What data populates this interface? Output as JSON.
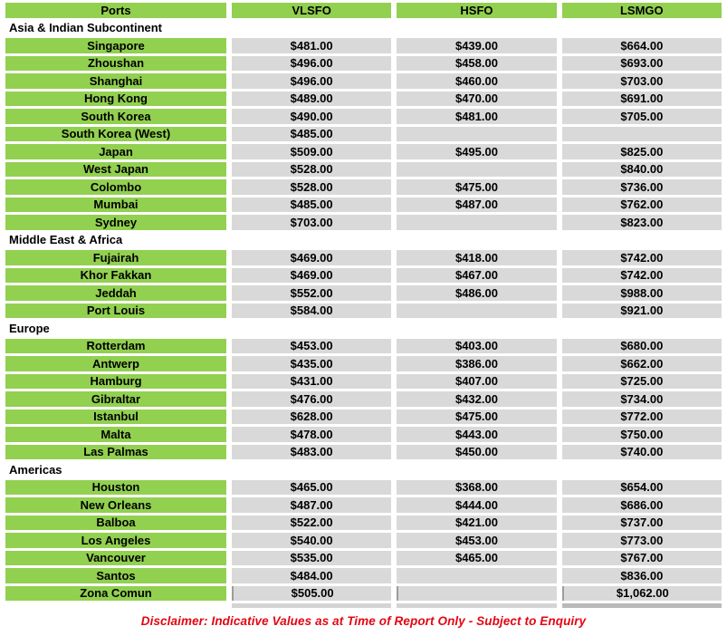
{
  "table": {
    "columns": [
      "Ports",
      "VLSFO",
      "HSFO",
      "LSMGO"
    ],
    "sections": [
      {
        "region": "Asia & Indian Subcontinent",
        "rows": [
          {
            "port": "Singapore",
            "vlsfo": "$481.00",
            "hsfo": "$439.00",
            "lsmgo": "$664.00"
          },
          {
            "port": "Zhoushan",
            "vlsfo": "$496.00",
            "hsfo": "$458.00",
            "lsmgo": "$693.00"
          },
          {
            "port": "Shanghai",
            "vlsfo": "$496.00",
            "hsfo": "$460.00",
            "lsmgo": "$703.00"
          },
          {
            "port": "Hong Kong",
            "vlsfo": "$489.00",
            "hsfo": "$470.00",
            "lsmgo": "$691.00"
          },
          {
            "port": "South Korea",
            "vlsfo": "$490.00",
            "hsfo": "$481.00",
            "lsmgo": "$705.00"
          },
          {
            "port": "South Korea (West)",
            "vlsfo": "$485.00",
            "hsfo": "",
            "lsmgo": ""
          },
          {
            "port": "Japan",
            "vlsfo": "$509.00",
            "hsfo": "$495.00",
            "lsmgo": "$825.00"
          },
          {
            "port": "West Japan",
            "vlsfo": "$528.00",
            "hsfo": "",
            "lsmgo": "$840.00"
          },
          {
            "port": "Colombo",
            "vlsfo": "$528.00",
            "hsfo": "$475.00",
            "lsmgo": "$736.00"
          },
          {
            "port": "Mumbai",
            "vlsfo": "$485.00",
            "hsfo": "$487.00",
            "lsmgo": "$762.00"
          },
          {
            "port": "Sydney",
            "vlsfo": "$703.00",
            "hsfo": "",
            "lsmgo": "$823.00"
          }
        ]
      },
      {
        "region": "Middle East & Africa",
        "rows": [
          {
            "port": "Fujairah",
            "vlsfo": "$469.00",
            "hsfo": "$418.00",
            "lsmgo": "$742.00"
          },
          {
            "port": "Khor Fakkan",
            "vlsfo": "$469.00",
            "hsfo": "$467.00",
            "lsmgo": "$742.00"
          },
          {
            "port": "Jeddah",
            "vlsfo": "$552.00",
            "hsfo": "$486.00",
            "lsmgo": "$988.00"
          },
          {
            "port": "Port Louis",
            "vlsfo": "$584.00",
            "hsfo": "",
            "lsmgo": "$921.00"
          }
        ]
      },
      {
        "region": "Europe",
        "rows": [
          {
            "port": "Rotterdam",
            "vlsfo": "$453.00",
            "hsfo": "$403.00",
            "lsmgo": "$680.00"
          },
          {
            "port": "Antwerp",
            "vlsfo": "$435.00",
            "hsfo": "$386.00",
            "lsmgo": "$662.00"
          },
          {
            "port": "Hamburg",
            "vlsfo": "$431.00",
            "hsfo": "$407.00",
            "lsmgo": "$725.00"
          },
          {
            "port": "Gibraltar",
            "vlsfo": "$476.00",
            "hsfo": "$432.00",
            "lsmgo": "$734.00"
          },
          {
            "port": "Istanbul",
            "vlsfo": "$628.00",
            "hsfo": "$475.00",
            "lsmgo": "$772.00"
          },
          {
            "port": "Malta",
            "vlsfo": "$478.00",
            "hsfo": "$443.00",
            "lsmgo": "$750.00"
          },
          {
            "port": "Las Palmas",
            "vlsfo": "$483.00",
            "hsfo": "$450.00",
            "lsmgo": "$740.00"
          }
        ]
      },
      {
        "region": "Americas",
        "rows": [
          {
            "port": "Houston",
            "vlsfo": "$465.00",
            "hsfo": "$368.00",
            "lsmgo": "$654.00"
          },
          {
            "port": "New Orleans",
            "vlsfo": "$487.00",
            "hsfo": "$444.00",
            "lsmgo": "$686.00"
          },
          {
            "port": "Balboa",
            "vlsfo": "$522.00",
            "hsfo": "$421.00",
            "lsmgo": "$737.00"
          },
          {
            "port": "Los Angeles",
            "vlsfo": "$540.00",
            "hsfo": "$453.00",
            "lsmgo": "$773.00"
          },
          {
            "port": "Vancouver",
            "vlsfo": "$535.00",
            "hsfo": "$465.00",
            "lsmgo": "$767.00"
          },
          {
            "port": "Santos",
            "vlsfo": "$484.00",
            "hsfo": "",
            "lsmgo": "$836.00"
          },
          {
            "port": "Zona Comun",
            "vlsfo": "$505.00",
            "hsfo": "",
            "lsmgo": "$1,062.00"
          }
        ]
      }
    ]
  },
  "disclaimer": "Disclaimer: Indicative Values as at Time of Report Only - Subject to Enquiry",
  "colors": {
    "header_and_port_green": "#92D050",
    "value_cell_gray": "#D9D9D9",
    "disclaimer_red": "#E30613",
    "text_black": "#000000"
  }
}
